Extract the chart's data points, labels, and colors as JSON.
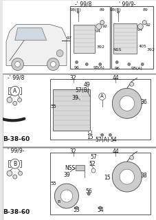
{
  "bg_color": "#e8e8e8",
  "text_color": "#111111",
  "font_size": 5.5,
  "label_font_size": 7,
  "top_left_label": "-’ 99/8",
  "top_right_label": "’ 99/9-",
  "mid_label": "-’ 99/8",
  "bot_label": "’ 99/9-",
  "ref_label": "B-38-60"
}
